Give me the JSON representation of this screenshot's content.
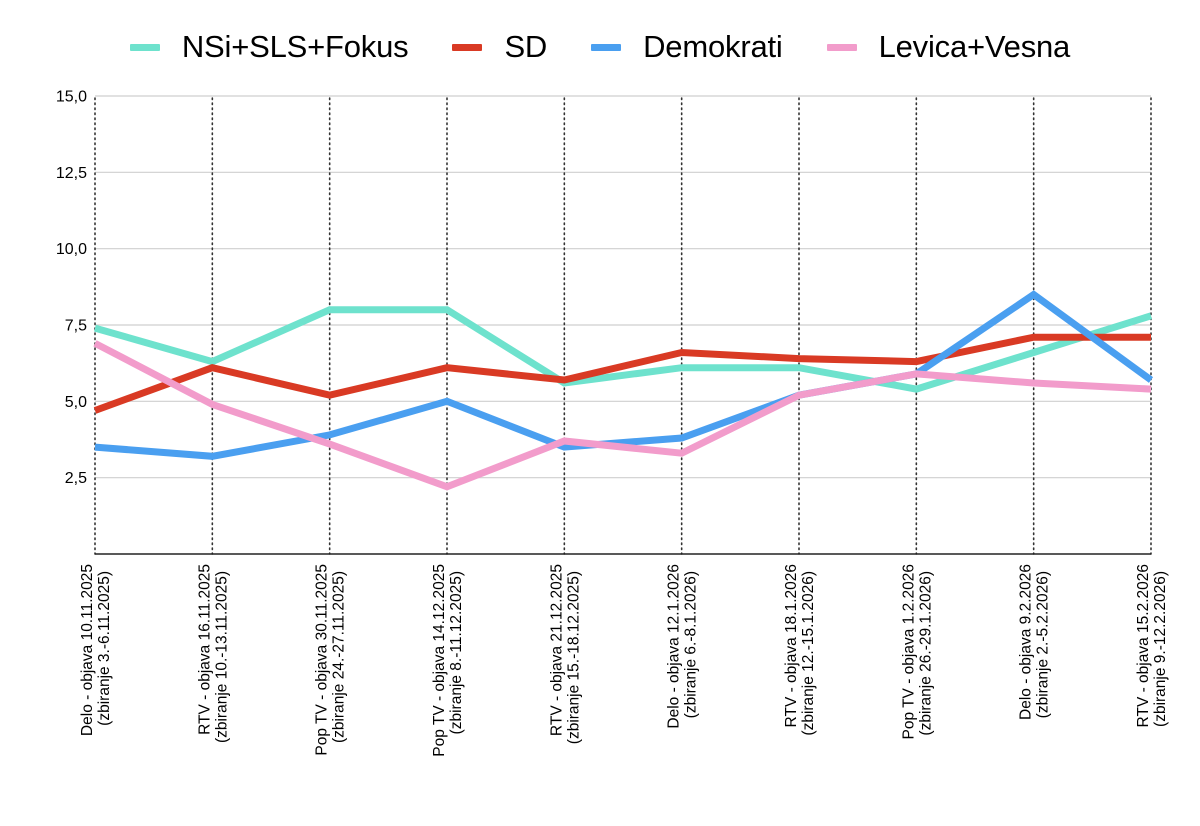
{
  "chart_data": {
    "type": "line",
    "title": "",
    "xlabel": "",
    "ylabel": "",
    "ylim": [
      0,
      15
    ],
    "yticks": [
      "2,5",
      "5,0",
      "7,5",
      "10,0",
      "12,5",
      "15,0"
    ],
    "ytick_values": [
      2.5,
      5,
      7.5,
      10,
      12.5,
      15
    ],
    "grid": true,
    "legend_position": "top-center",
    "categories": [
      [
        "Delo - objava 10.11.2025",
        "(zbiranje 3.-6.11.2025)"
      ],
      [
        "RTV - objava 16.11.2025",
        "(zbiranje 10.-13.11.2025)"
      ],
      [
        "Pop TV - objava 30.11.2025",
        "(zbiranje 24.-27.11.2025)"
      ],
      [
        "Pop TV - objava 14.12.2025",
        "(zbiranje 8.-11.12.2025)"
      ],
      [
        "RTV - objava 21.12.2025",
        "(zbiranje 15.-18.12.2025)"
      ],
      [
        "Delo - objava 12.1.2026",
        "(zbiranje 6.-8.1.2026)"
      ],
      [
        "RTV - objava 18.1.2026",
        "(zbiranje 12.-15.1.2026)"
      ],
      [
        "Pop TV - objava 1.2.2026",
        "(zbiranje 26.-29.1.2026)"
      ],
      [
        "Delo - objava 9.2.2026",
        "(zbiranje 2.-5.2.2026)"
      ],
      [
        "RTV - objava 15.2.2026",
        "(zbiranje 9.-12.2.2026)"
      ]
    ],
    "series": [
      {
        "name": "NSi+SLS+Fokus",
        "color": "#6ee2cd",
        "values": [
          7.4,
          6.3,
          8.0,
          8.0,
          5.6,
          6.1,
          6.1,
          5.4,
          6.6,
          7.8
        ]
      },
      {
        "name": "SD",
        "color": "#d93a24",
        "values": [
          4.7,
          6.1,
          5.2,
          6.1,
          5.7,
          6.6,
          6.4,
          6.3,
          7.1,
          7.1
        ]
      },
      {
        "name": "Demokrati",
        "color": "#4a9ff0",
        "values": [
          3.5,
          3.2,
          3.9,
          5.0,
          3.5,
          3.8,
          5.2,
          5.9,
          8.5,
          5.7
        ]
      },
      {
        "name": "Levica+Vesna",
        "color": "#f29ccb",
        "values": [
          6.9,
          4.9,
          3.6,
          2.2,
          3.7,
          3.3,
          5.2,
          5.9,
          5.6,
          5.4
        ]
      }
    ]
  }
}
